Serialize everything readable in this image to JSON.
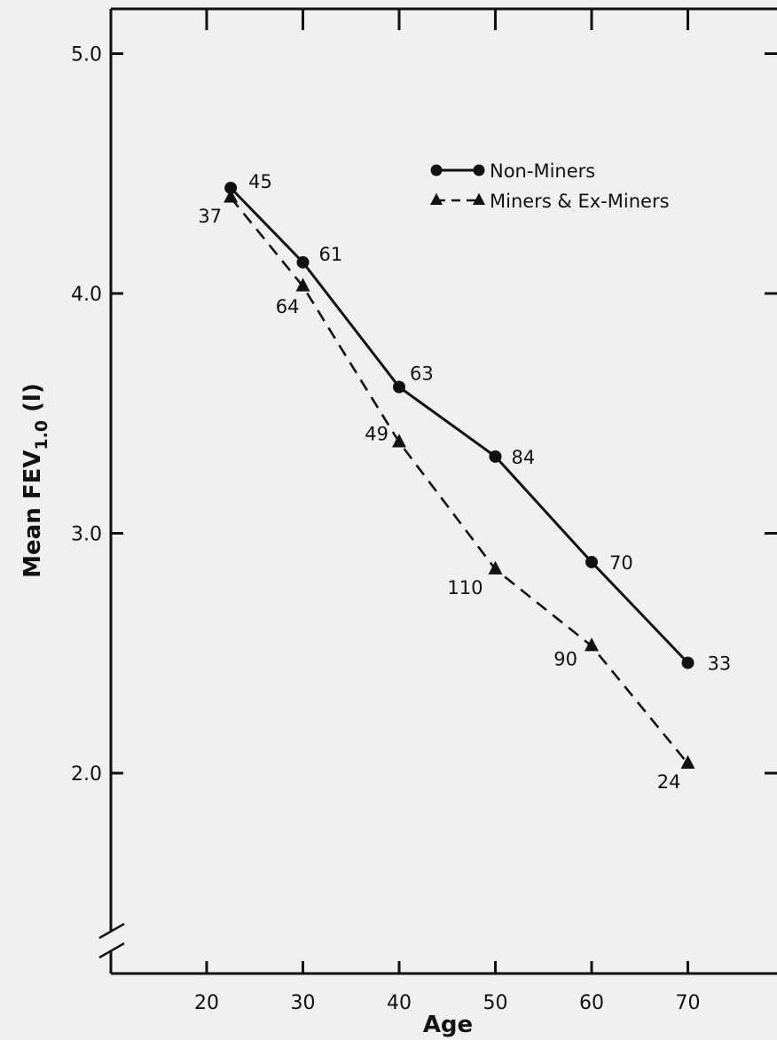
{
  "chart_data": {
    "type": "line",
    "xlabel": "Age",
    "ylabel": "Mean FEV",
    "ylabel_sub": "1.0",
    "ylabel_unit": " (l)",
    "xlim": [
      10,
      80
    ],
    "ylim": [
      1.35,
      5.2
    ],
    "x_ticks": [
      20,
      30,
      40,
      50,
      60,
      70
    ],
    "x_tick_labels": [
      "20",
      "30",
      "40",
      "50",
      "60",
      "70"
    ],
    "y_ticks": [
      2.0,
      3.0,
      4.0,
      5.0
    ],
    "y_tick_labels": [
      "2.0",
      "3.0",
      "4.0",
      "5.0"
    ],
    "y_axis_break": true,
    "grid": false,
    "legend_position": "top-right",
    "series": [
      {
        "name": "Non-Miners",
        "marker": "circle",
        "line": "solid",
        "points": [
          {
            "x": 22.5,
            "y": 4.44,
            "n": "45"
          },
          {
            "x": 30,
            "y": 4.13,
            "n": "61"
          },
          {
            "x": 40,
            "y": 3.61,
            "n": "63"
          },
          {
            "x": 50,
            "y": 3.32,
            "n": "84"
          },
          {
            "x": 60,
            "y": 2.88,
            "n": "70"
          },
          {
            "x": 70,
            "y": 2.46,
            "n": "33"
          }
        ]
      },
      {
        "name": "Miners & Ex-Miners",
        "marker": "triangle",
        "line": "dashed",
        "points": [
          {
            "x": 22.5,
            "y": 4.4,
            "n": "37"
          },
          {
            "x": 30,
            "y": 4.03,
            "n": "64"
          },
          {
            "x": 40,
            "y": 3.38,
            "n": "49"
          },
          {
            "x": 50,
            "y": 2.85,
            "n": "110"
          },
          {
            "x": 60,
            "y": 2.53,
            "n": "90"
          },
          {
            "x": 70,
            "y": 2.04,
            "n": "24"
          }
        ]
      }
    ]
  },
  "colors": {
    "background": "#f1f0ee",
    "ink": "#111111"
  }
}
